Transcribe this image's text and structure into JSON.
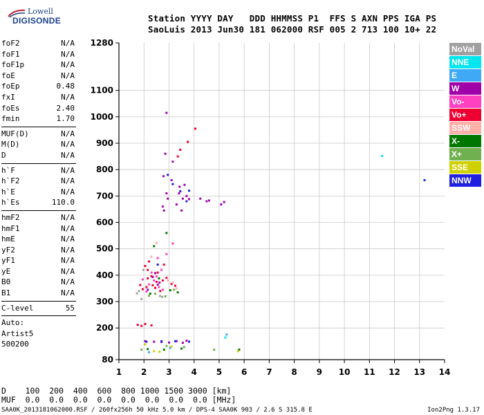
{
  "logo": {
    "line1": "Lowell",
    "line2": "DIGISONDE"
  },
  "header": {
    "row1": "Station YYYY DAY   DDD HHMMSS P1  FFS S AXN PPS IGA PS",
    "row2": "SaoLuis 2013 Jun30 181 062000 RSF 005 2 713 100 10+ 22"
  },
  "params": {
    "group1": [
      {
        "k": "foF2",
        "v": "N/A"
      },
      {
        "k": "foF1",
        "v": "N/A"
      },
      {
        "k": "foF1p",
        "v": "N/A"
      },
      {
        "k": "foE",
        "v": "N/A"
      },
      {
        "k": "foEp",
        "v": "0.48"
      },
      {
        "k": "fxI",
        "v": "N/A"
      },
      {
        "k": "foEs",
        "v": "2.40"
      },
      {
        "k": "fmin",
        "v": "1.70"
      }
    ],
    "group2": [
      {
        "k": "MUF(D)",
        "v": "N/A"
      },
      {
        "k": "M(D)",
        "v": "N/A"
      },
      {
        "k": "D",
        "v": "N/A"
      }
    ],
    "group3": [
      {
        "k": "h`F",
        "v": "N/A"
      },
      {
        "k": "h`F2",
        "v": "N/A"
      },
      {
        "k": "h`E",
        "v": "N/A"
      },
      {
        "k": "h`Es",
        "v": "110.0"
      }
    ],
    "group4": [
      {
        "k": "hmF2",
        "v": "N/A"
      },
      {
        "k": "hmF1",
        "v": "N/A"
      },
      {
        "k": "hmE",
        "v": "N/A"
      },
      {
        "k": "yF2",
        "v": "N/A"
      },
      {
        "k": "yF1",
        "v": "N/A"
      },
      {
        "k": "yE",
        "v": "N/A"
      },
      {
        "k": "B0",
        "v": "N/A"
      },
      {
        "k": "B1",
        "v": "N/A"
      }
    ],
    "clevel": {
      "k": "C-level",
      "v": "55"
    },
    "auto": [
      "Auto:",
      "Artist5",
      "500200"
    ]
  },
  "legend": [
    {
      "label": "NoVal",
      "color": "#a0a0a0"
    },
    {
      "label": "NNE",
      "color": "#00e5ee"
    },
    {
      "label": "E",
      "color": "#3fa9f5"
    },
    {
      "label": "W",
      "color": "#a000a8"
    },
    {
      "label": "Vo-",
      "color": "#ff40c0"
    },
    {
      "label": "Vo+",
      "color": "#ee0033"
    },
    {
      "label": "SSW",
      "color": "#ffb0a8"
    },
    {
      "label": "X-",
      "color": "#007800"
    },
    {
      "label": "X+",
      "color": "#70b050"
    },
    {
      "label": "SSE",
      "color": "#d0d000"
    },
    {
      "label": "NNW",
      "color": "#2020e0"
    }
  ],
  "bottom": {
    "d_row": "D    100  200  400  600  800 1000 1500 3000 [km]",
    "muf_row": "MUF  0.0  0.0  0.0  0.0  0.0  0.0  0.0  0.0 [MHz]"
  },
  "footer": {
    "left": "SAA0K_2013181062000.RSF / 260fx256h 50 kHz 5.0 km / DPS-4 SAA0K 903 / 2.6 S 315.8 E",
    "right": "Ion2Png 1.3.17"
  },
  "chart_data": {
    "type": "scatter",
    "title": "",
    "xlabel": "",
    "ylabel": "",
    "xlim": [
      1,
      14
    ],
    "ylim": [
      80,
      1280
    ],
    "xticks": [
      1,
      2,
      3,
      4,
      5,
      6,
      7,
      8,
      9,
      10,
      11,
      12,
      13,
      14
    ],
    "yticks": [
      80,
      200,
      300,
      400,
      500,
      600,
      700,
      800,
      900,
      1000,
      1100,
      1280
    ],
    "grid": true,
    "series": [
      {
        "name": "NoVal",
        "color": "#a0a0a0",
        "points": [
          [
            1.72,
            331
          ],
          [
            1.8,
            340
          ],
          [
            2.64,
            321
          ],
          [
            1.98,
            420
          ],
          [
            2.73,
            318
          ],
          [
            1.9,
            310
          ]
        ]
      },
      {
        "name": "NNE",
        "color": "#00e5ee",
        "points": [
          [
            11.5,
            852
          ],
          [
            5.25,
            164
          ]
        ]
      },
      {
        "name": "E",
        "color": "#3fa9f5",
        "points": [
          [
            5.3,
            175
          ],
          [
            3.05,
            125
          ],
          [
            2.2,
            108
          ]
        ]
      },
      {
        "name": "W",
        "color": "#a000a8",
        "points": [
          [
            2.9,
            1015
          ],
          [
            2.78,
            775
          ],
          [
            3.1,
            760
          ],
          [
            2.95,
            690
          ],
          [
            3.4,
            710
          ],
          [
            3.55,
            690
          ],
          [
            3.7,
            700
          ],
          [
            3.62,
            742
          ],
          [
            3.3,
            668
          ],
          [
            4.25,
            690
          ],
          [
            4.5,
            680
          ],
          [
            4.6,
            683
          ],
          [
            5.08,
            668
          ],
          [
            5.2,
            677
          ],
          [
            3.15,
            830
          ],
          [
            2.85,
            860
          ],
          [
            2.8,
            645
          ],
          [
            2.9,
            710
          ],
          [
            2.75,
            660
          ],
          [
            3.5,
            645
          ],
          [
            3.8,
            688
          ],
          [
            3.42,
            735
          ],
          [
            2.45,
            408
          ],
          [
            2.55,
            364
          ],
          [
            2.15,
            345
          ],
          [
            2.35,
            393
          ],
          [
            2.62,
            372
          ],
          [
            2.05,
            150
          ],
          [
            2.4,
            148
          ],
          [
            2.7,
            147
          ],
          [
            3.0,
            145
          ],
          [
            3.3,
            150
          ],
          [
            3.55,
            144
          ],
          [
            3.7,
            152
          ]
        ]
      },
      {
        "name": "Vo-",
        "color": "#ff40c0",
        "points": [
          [
            2.2,
            365
          ],
          [
            2.4,
            380
          ],
          [
            2.6,
            355
          ],
          [
            2.9,
            480
          ],
          [
            2.7,
            420
          ],
          [
            2.1,
            338
          ],
          [
            2.5,
            395
          ],
          [
            1.95,
            384
          ],
          [
            2.3,
            410
          ],
          [
            3.15,
            520
          ],
          [
            2.75,
            345
          ],
          [
            2.55,
            465
          ]
        ]
      },
      {
        "name": "Vo+",
        "color": "#ee0033",
        "points": [
          [
            2.1,
            355
          ],
          [
            2.35,
            362
          ],
          [
            2.55,
            410
          ],
          [
            2.75,
            380
          ],
          [
            2.2,
            452
          ],
          [
            1.85,
            363
          ],
          [
            2.9,
            390
          ],
          [
            3.1,
            367
          ],
          [
            2.45,
            352
          ],
          [
            2.65,
            340
          ],
          [
            2.05,
            435
          ],
          [
            2.3,
            396
          ],
          [
            2.5,
            375
          ],
          [
            2.8,
            440
          ],
          [
            2.15,
            420
          ],
          [
            3.25,
            360
          ],
          [
            1.75,
            212
          ],
          [
            1.9,
            208
          ],
          [
            2.05,
            215
          ],
          [
            2.3,
            210
          ],
          [
            1.95,
            347
          ],
          [
            2.15,
            388
          ],
          [
            3.35,
            850
          ],
          [
            3.75,
            905
          ],
          [
            3.45,
            875
          ],
          [
            4.05,
            955
          ]
        ]
      },
      {
        "name": "SSW",
        "color": "#ffb0a8",
        "points": [
          [
            2.95,
            380
          ],
          [
            3.15,
            372
          ],
          [
            3.3,
            350
          ],
          [
            2.3,
            470
          ],
          [
            2.5,
            522
          ]
        ]
      },
      {
        "name": "X-",
        "color": "#007800",
        "points": [
          [
            2.6,
            388
          ],
          [
            3.05,
            343
          ],
          [
            3.35,
            335
          ],
          [
            2.25,
            330
          ],
          [
            2.4,
            510
          ],
          [
            2.9,
            560
          ],
          [
            2.15,
            120
          ],
          [
            2.8,
            118
          ],
          [
            3.5,
            122
          ],
          [
            5.8,
            118
          ]
        ]
      },
      {
        "name": "X+",
        "color": "#70b050",
        "points": [
          [
            2.45,
            330
          ],
          [
            2.85,
            320
          ],
          [
            3.2,
            345
          ],
          [
            2.2,
            322
          ],
          [
            3.6,
            128
          ],
          [
            2.9,
            132
          ],
          [
            1.9,
            118
          ],
          [
            4.8,
            118
          ]
        ]
      },
      {
        "name": "SSE",
        "color": "#d0d000",
        "points": [
          [
            2.62,
            110
          ],
          [
            2.4,
            112
          ],
          [
            5.75,
            112
          ],
          [
            2.05,
            138
          ],
          [
            3.1,
            130
          ]
        ]
      },
      {
        "name": "NNW",
        "color": "#2020e0",
        "points": [
          [
            13.2,
            760
          ],
          [
            2.7,
            150
          ],
          [
            3.25,
            150
          ],
          [
            2.1,
            148
          ],
          [
            3.8,
            148
          ],
          [
            3.15,
            745
          ],
          [
            3.45,
            718
          ],
          [
            2.95,
            780
          ],
          [
            3.8,
            720
          ],
          [
            3.7,
            680
          ],
          [
            2.55,
            440
          ]
        ]
      }
    ]
  }
}
